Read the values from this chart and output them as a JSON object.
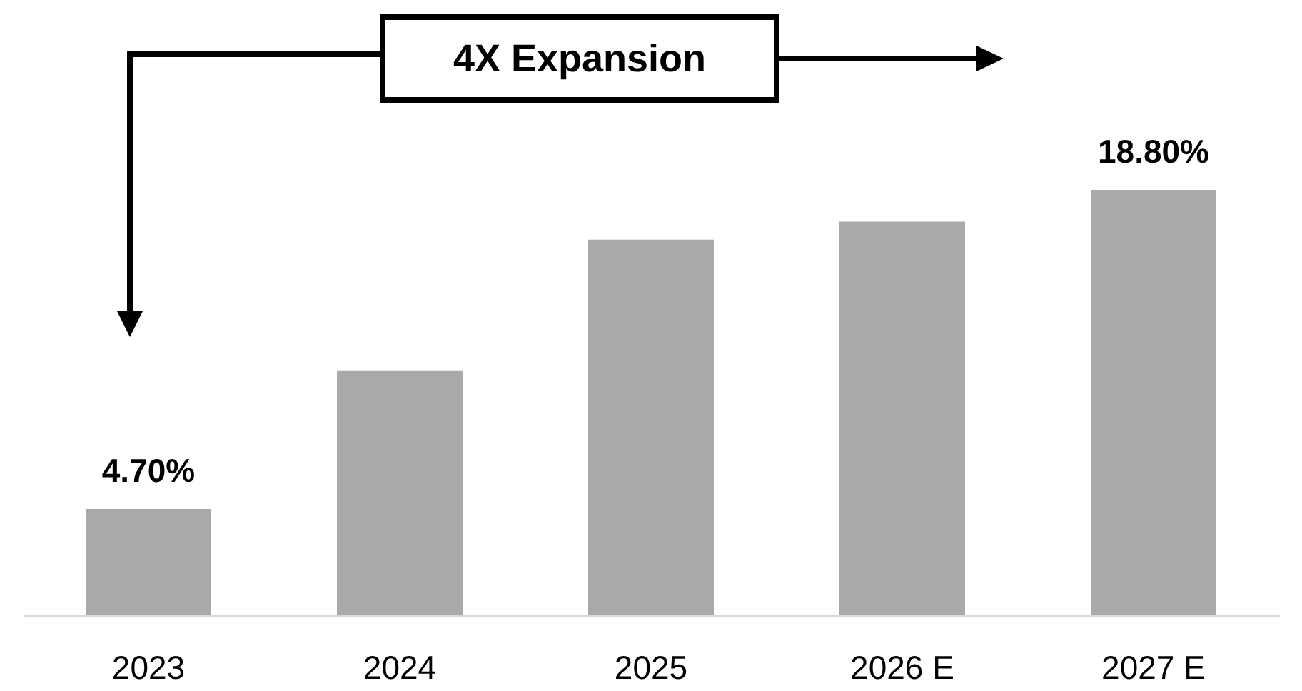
{
  "chart_data": {
    "type": "bar",
    "categories": [
      "2023",
      "2024",
      "2025",
      "2026 E",
      "2027 E"
    ],
    "values": [
      4.7,
      10.8,
      16.6,
      17.4,
      18.8
    ],
    "value_labels": [
      "4.70%",
      null,
      null,
      null,
      "18.80%"
    ],
    "color": "#a9a9a9",
    "annotations": [
      "4X Expansion"
    ]
  }
}
